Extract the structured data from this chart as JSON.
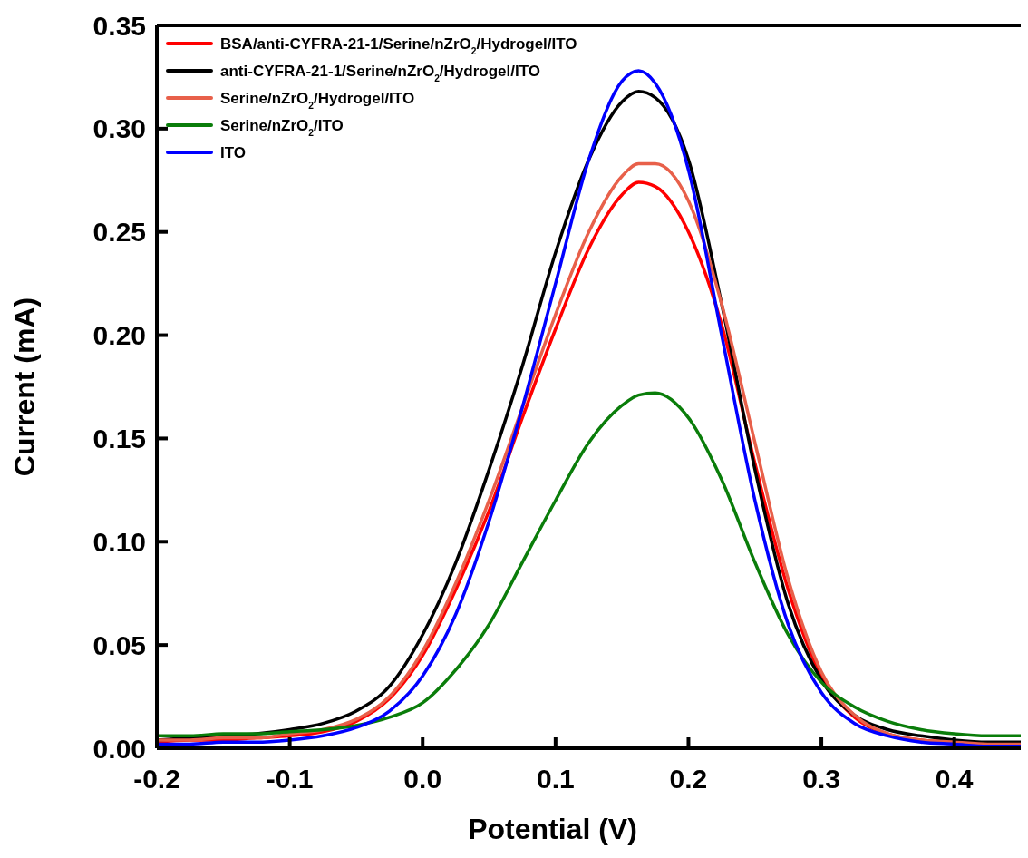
{
  "chart_data": {
    "type": "line",
    "xlabel": "Potential (V)",
    "ylabel": "Current (mA)",
    "x": [
      -0.2,
      -0.175,
      -0.15,
      -0.125,
      -0.1,
      -0.075,
      -0.05,
      -0.025,
      0,
      0.025,
      0.05,
      0.075,
      0.1,
      0.125,
      0.15,
      0.1625,
      0.175,
      0.2,
      0.225,
      0.25,
      0.275,
      0.3,
      0.325,
      0.35,
      0.375,
      0.4,
      0.425,
      0.45
    ],
    "series": [
      {
        "name": "BSA/anti-CYFRA-21-1/Serine/nZrO$_{2}$/Hydrogel/ITO",
        "color": "#ff0000",
        "values": [
          0.003,
          0.004,
          0.004,
          0.005,
          0.006,
          0.008,
          0.013,
          0.024,
          0.045,
          0.077,
          0.115,
          0.16,
          0.203,
          0.242,
          0.268,
          0.274,
          0.272,
          0.25,
          0.205,
          0.138,
          0.077,
          0.035,
          0.015,
          0.007,
          0.004,
          0.003,
          0.002,
          0.002
        ]
      },
      {
        "name": "anti-CYFRA-21-1/Serine/nZrO$_{2}$/Hydrogel/ITO",
        "color": "#000000",
        "values": [
          0.004,
          0.005,
          0.006,
          0.007,
          0.009,
          0.012,
          0.018,
          0.03,
          0.055,
          0.09,
          0.135,
          0.185,
          0.24,
          0.285,
          0.313,
          0.318,
          0.315,
          0.285,
          0.215,
          0.135,
          0.07,
          0.033,
          0.016,
          0.009,
          0.006,
          0.004,
          0.003,
          0.003
        ]
      },
      {
        "name": "Serine/nZrO$_{2}$/Hydrogel/ITO",
        "color": "#e8604a",
        "values": [
          0.004,
          0.004,
          0.005,
          0.005,
          0.007,
          0.009,
          0.014,
          0.025,
          0.047,
          0.08,
          0.12,
          0.165,
          0.21,
          0.25,
          0.277,
          0.283,
          0.283,
          0.265,
          0.215,
          0.148,
          0.082,
          0.037,
          0.016,
          0.007,
          0.004,
          0.003,
          0.002,
          0.002
        ]
      },
      {
        "name": "Serine/nZrO$_{2}$/ITO",
        "color": "#0a7d0a",
        "values": [
          0.006,
          0.006,
          0.007,
          0.007,
          0.008,
          0.009,
          0.011,
          0.015,
          0.022,
          0.038,
          0.06,
          0.09,
          0.12,
          0.148,
          0.166,
          0.171,
          0.172,
          0.16,
          0.13,
          0.09,
          0.055,
          0.032,
          0.02,
          0.013,
          0.009,
          0.007,
          0.006,
          0.006
        ]
      },
      {
        "name": "ITO",
        "color": "#0000ff",
        "values": [
          0.002,
          0.002,
          0.003,
          0.003,
          0.004,
          0.006,
          0.01,
          0.018,
          0.035,
          0.065,
          0.11,
          0.165,
          0.225,
          0.285,
          0.323,
          0.328,
          0.322,
          0.28,
          0.2,
          0.12,
          0.06,
          0.027,
          0.012,
          0.006,
          0.003,
          0.002,
          0.001,
          0.001
        ]
      }
    ],
    "xlim": [
      -0.2,
      0.45
    ],
    "ylim": [
      0,
      0.35
    ],
    "xticks": [
      {
        "value": -0.2,
        "label": "-0.2"
      },
      {
        "value": -0.1,
        "label": "-0.1"
      },
      {
        "value": 0,
        "label": "0.0"
      },
      {
        "value": 0.1,
        "label": "0.1"
      },
      {
        "value": 0.2,
        "label": "0.2"
      },
      {
        "value": 0.3,
        "label": "0.3"
      },
      {
        "value": 0.4,
        "label": "0.4"
      }
    ],
    "yticks": [
      {
        "value": 0,
        "label": "0.00"
      },
      0.05,
      {
        "value": 0.1,
        "label": "0.10"
      },
      0.15,
      {
        "value": 0.2,
        "label": "0.20"
      },
      0.25,
      {
        "value": 0.3,
        "label": "0.30"
      },
      0.35
    ],
    "legend": "top left",
    "grid": false,
    "marker": "none",
    "line_style": "solid"
  }
}
